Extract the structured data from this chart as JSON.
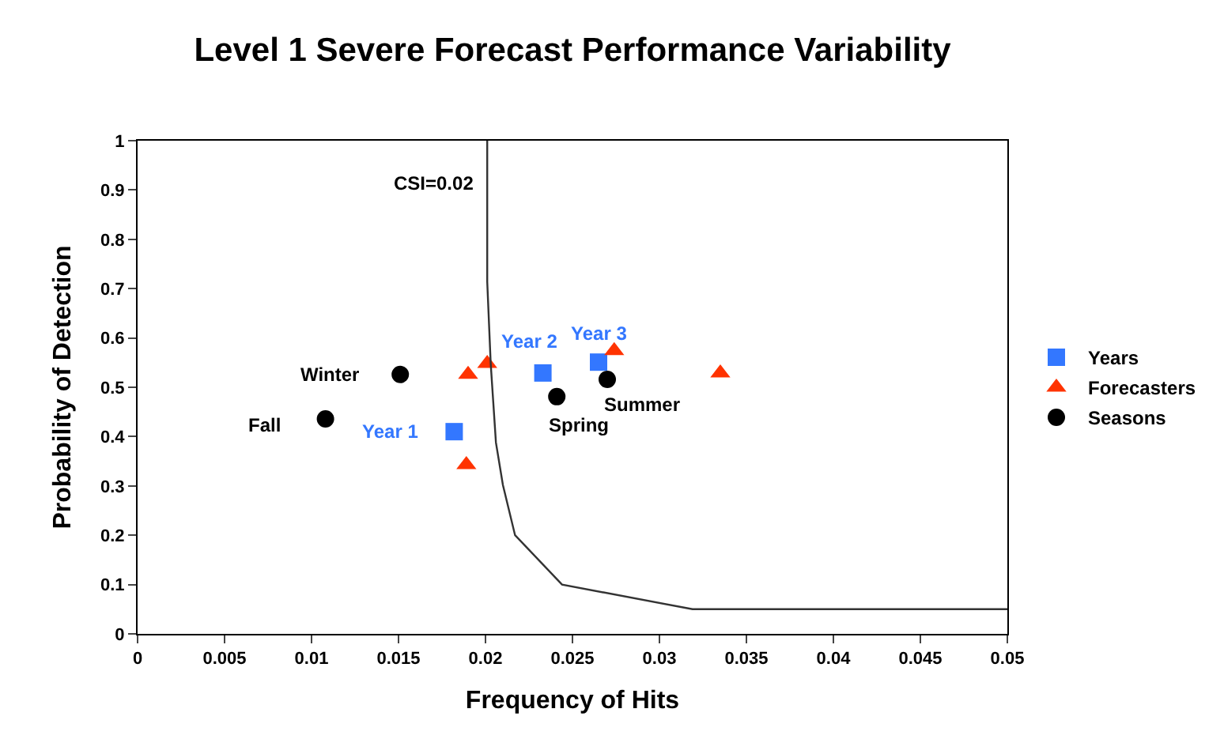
{
  "chart_data": {
    "type": "scatter",
    "title": "Level 1 Severe Forecast Performance Variability",
    "xlabel": "Frequency of Hits",
    "ylabel": "Probability of Detection",
    "xlim": [
      0,
      0.05
    ],
    "xticks": [
      0,
      0.005,
      0.01,
      0.015,
      0.02,
      0.025,
      0.03,
      0.035,
      0.04,
      0.045,
      0.05
    ],
    "ylim": [
      0,
      1
    ],
    "yticks": [
      0,
      0.1,
      0.2,
      0.3,
      0.4,
      0.5,
      0.6,
      0.7,
      0.8,
      0.9,
      1
    ],
    "grid": false,
    "legend": "right",
    "series": [
      {
        "name": "Years",
        "marker": "square",
        "color": "#3377ff",
        "x": [
          0.0182,
          0.0233,
          0.0265
        ],
        "values": [
          0.41,
          0.529,
          0.551
        ]
      },
      {
        "name": "Forecasters",
        "marker": "triangle",
        "color": "#ff3300",
        "x": [
          0.019,
          0.0201,
          0.0189,
          0.0274,
          0.0335
        ],
        "values": [
          0.526,
          0.548,
          0.343,
          0.574,
          0.529
        ]
      },
      {
        "name": "Seasons",
        "marker": "circle",
        "color": "#000000",
        "x": [
          0.0151,
          0.0108,
          0.0241,
          0.027
        ],
        "values": [
          0.526,
          0.436,
          0.481,
          0.516
        ]
      },
      {
        "type": "line",
        "marker": "none",
        "line_style": "solid",
        "color": "#333333",
        "x": [
          0.0201,
          0.0201,
          0.0201,
          0.0203,
          0.0206,
          0.021,
          0.0217,
          0.0244,
          0.0319,
          0.05
        ],
        "values": [
          1,
          0.815,
          0.714,
          0.548,
          0.388,
          0.302,
          0.2,
          0.1,
          0.05,
          0.05
        ]
      }
    ],
    "annotations": [
      {
        "text": "Year 1",
        "x": 0.0182,
        "y": 0.41
      },
      {
        "text": "Year 2",
        "x": 0.0233,
        "y": 0.529
      },
      {
        "text": "Year 3",
        "x": 0.0265,
        "y": 0.551
      },
      {
        "text": "Winter",
        "x": 0.0151,
        "y": 0.526
      },
      {
        "text": "Fall",
        "x": 0.0108,
        "y": 0.436
      },
      {
        "text": "Spring",
        "x": 0.0241,
        "y": 0.481
      },
      {
        "text": "Summer",
        "x": 0.027,
        "y": 0.516
      },
      {
        "text": "CSI=0.02",
        "x": 0.0201,
        "y": 0.915
      }
    ]
  }
}
